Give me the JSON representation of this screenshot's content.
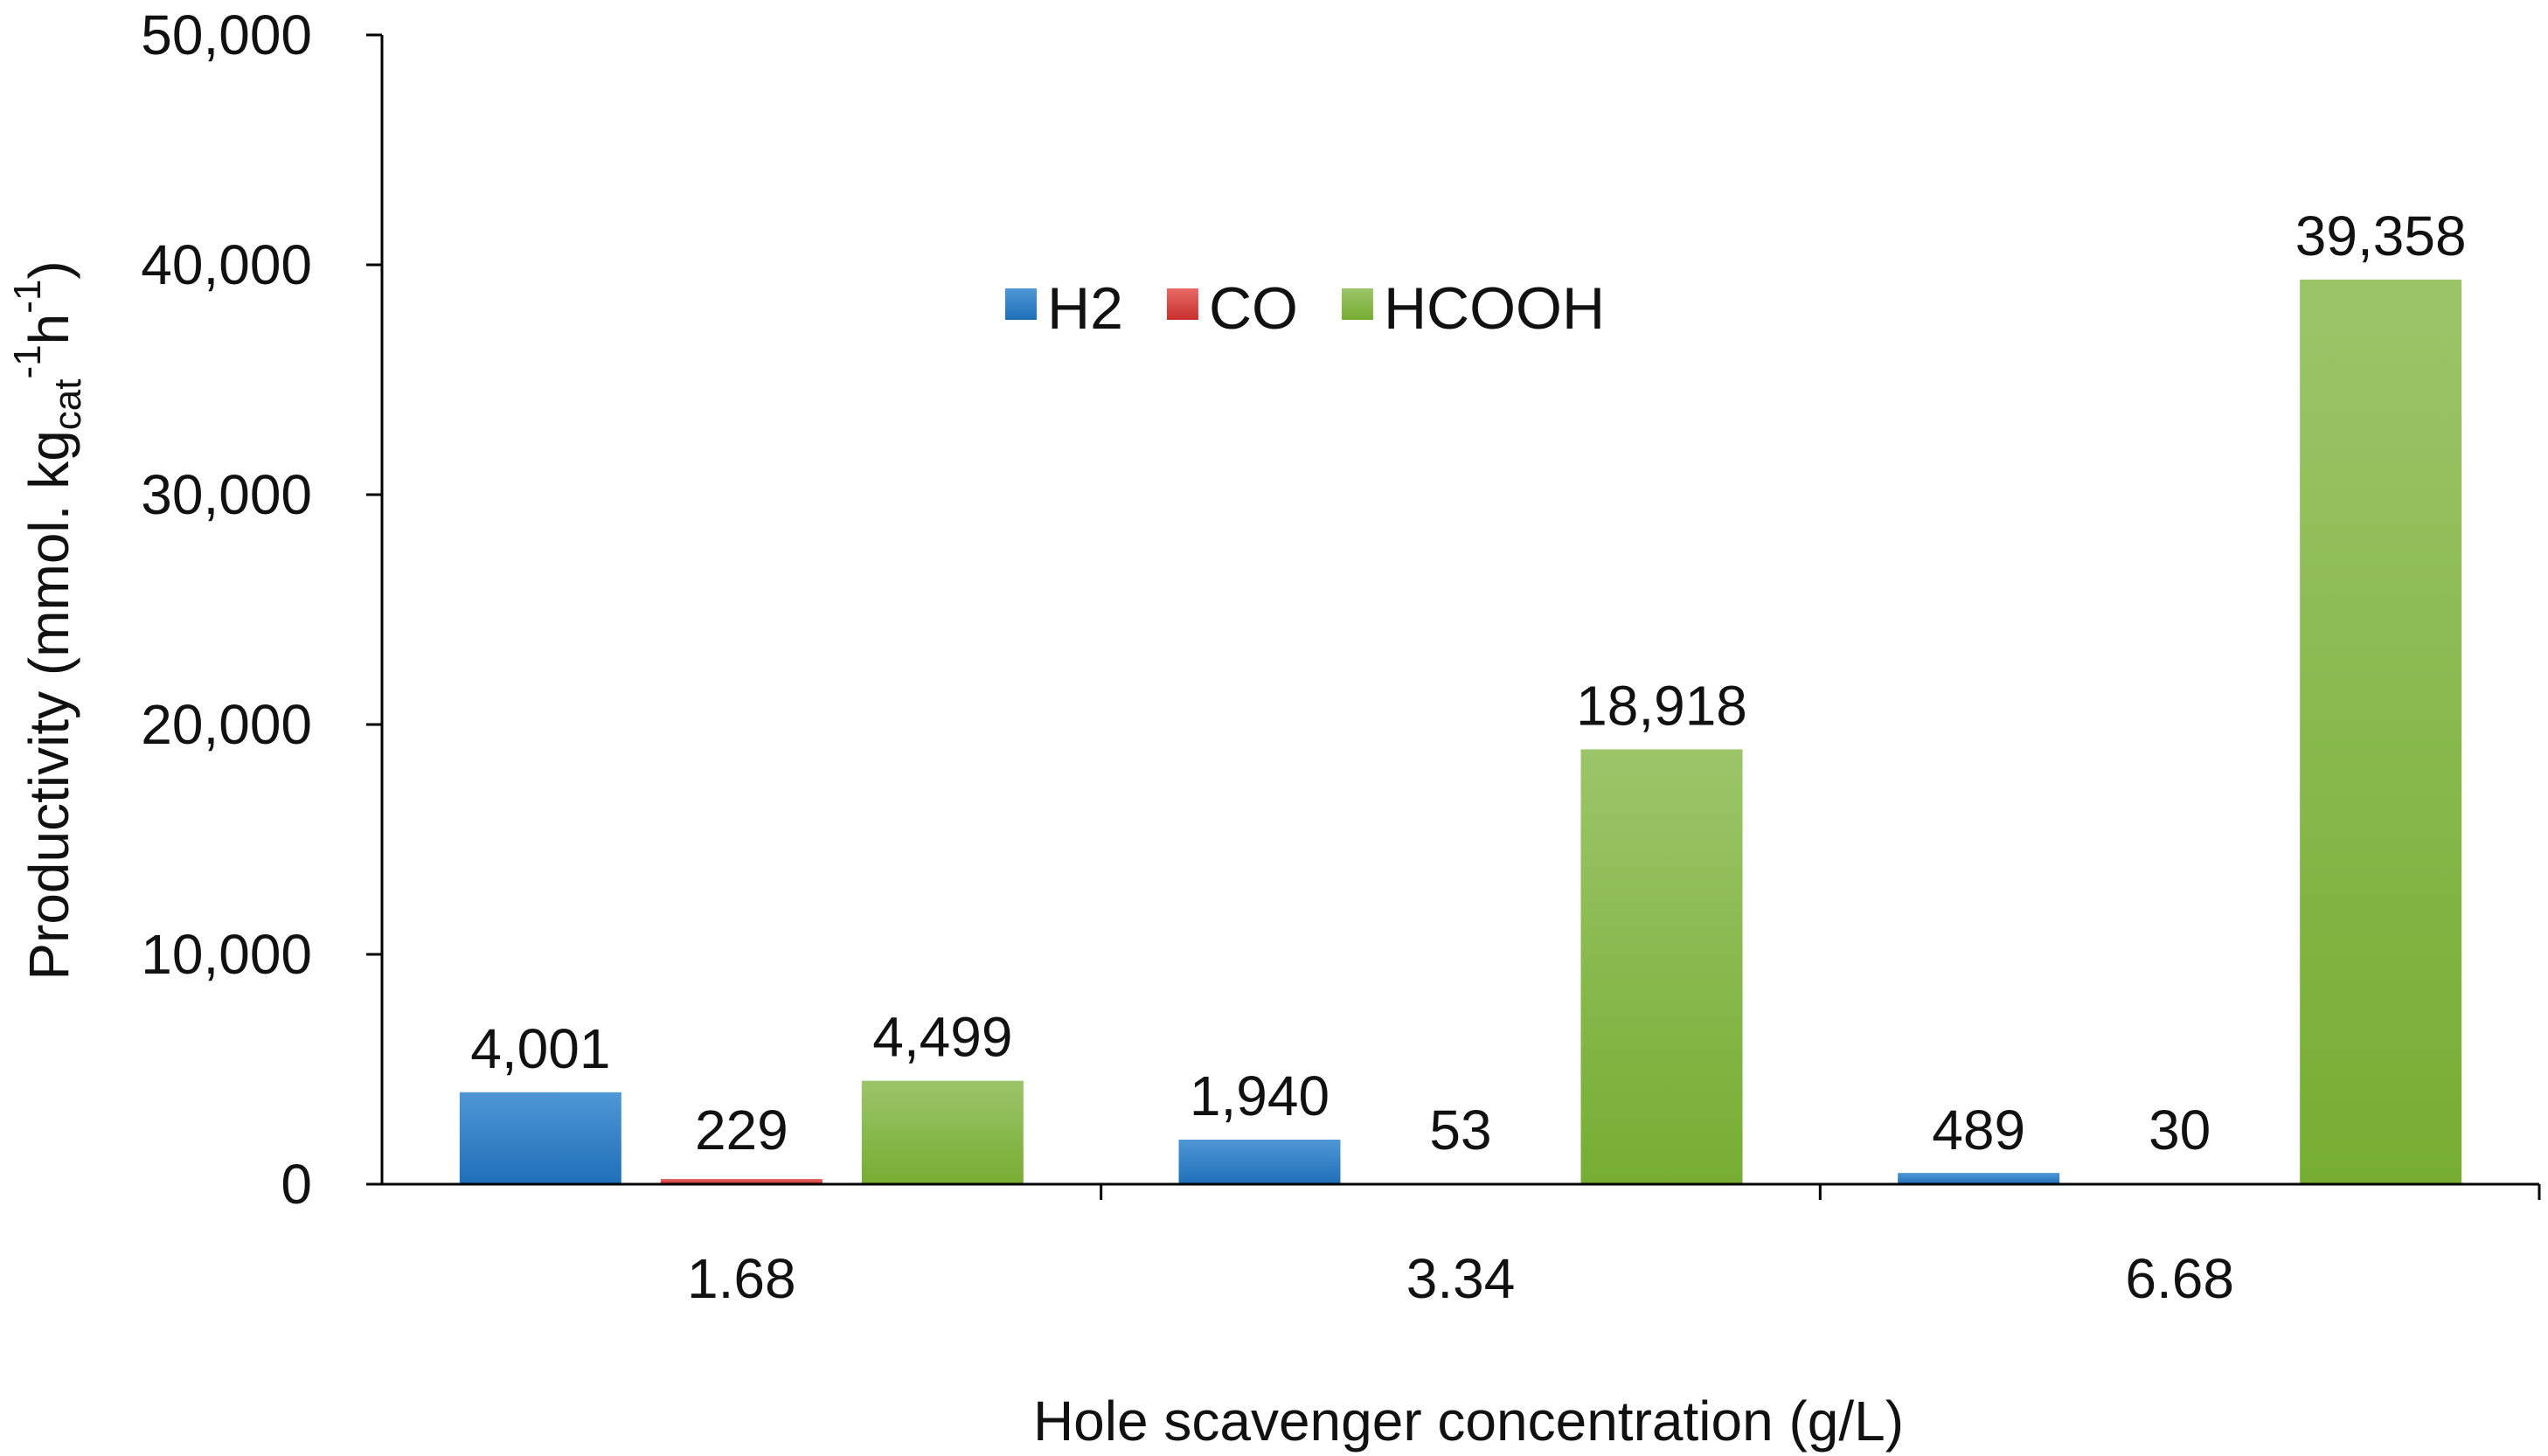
{
  "chart_data": {
    "type": "bar",
    "categories": [
      "1.68",
      "3.34",
      "6.68"
    ],
    "series": [
      {
        "name": "H2",
        "values": [
          4001,
          1940,
          489
        ],
        "labels": [
          "4,001",
          "1,940",
          "489"
        ],
        "color": "#2f7fc6"
      },
      {
        "name": "CO",
        "values": [
          229,
          53,
          30
        ],
        "labels": [
          "229",
          "53",
          "30"
        ],
        "color": "#d9413e"
      },
      {
        "name": "HCOOH",
        "values": [
          4499,
          18918,
          39358
        ],
        "labels": [
          "4,499",
          "18,918",
          "39,358"
        ],
        "color": "#8bbd45"
      }
    ],
    "xlabel": "Hole scavenger concentration (g/L)",
    "ylabel": {
      "prefix": "Productivity (mmol. kg",
      "sub": "cat",
      "sup1": "-1",
      "mid": "h",
      "sup2": "-1",
      "suffix": ")"
    },
    "ylim": [
      0,
      50000
    ],
    "yticks": [
      0,
      10000,
      20000,
      30000,
      40000,
      50000
    ],
    "ytick_labels": [
      "0",
      "10,000",
      "20,000",
      "30,000",
      "40,000",
      "50,000"
    ],
    "legend_position": "top-center",
    "grid": false
  }
}
